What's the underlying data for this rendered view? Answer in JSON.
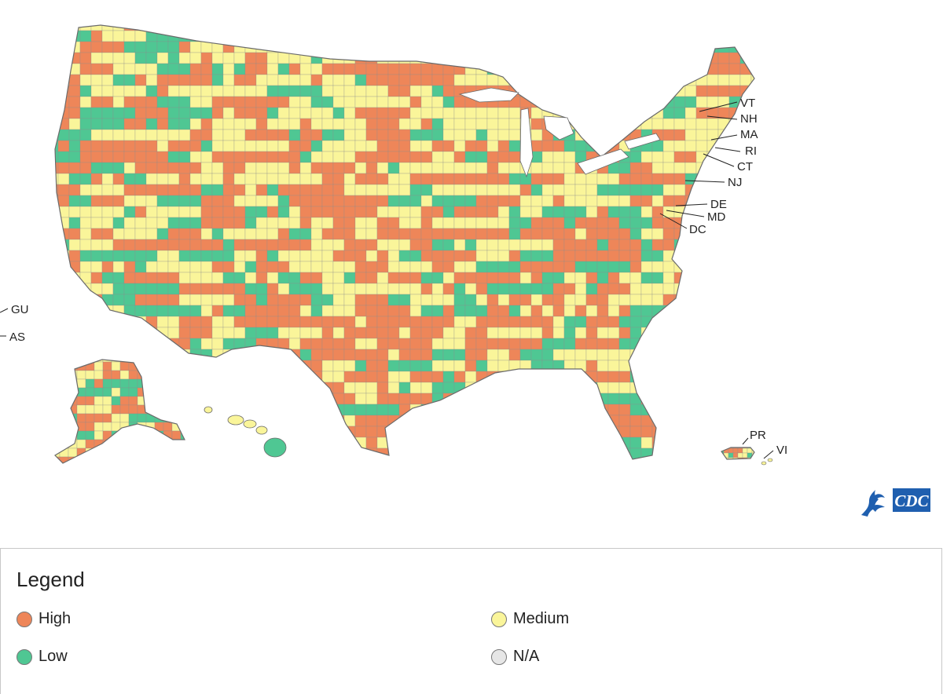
{
  "colors": {
    "high": "#EE8659",
    "medium": "#FAF59A",
    "low": "#4FC793",
    "na": "#E6E6E6",
    "border": "#6b6b6b",
    "cdc_blue": "#1F5FAF"
  },
  "map": {
    "icon": "us-county-map",
    "labels": {
      "vt": "VT",
      "nh": "NH",
      "ma": "MA",
      "ri": "RI",
      "ct": "CT",
      "nj": "NJ",
      "de": "DE",
      "md": "MD",
      "dc": "DC",
      "gu": "GU",
      "as": "AS",
      "pr": "PR",
      "vi": "VI"
    }
  },
  "logo": {
    "text": "CDC",
    "icon": "hhs-eagle-icon"
  },
  "legend": {
    "title": "Legend",
    "items": [
      {
        "label": "High",
        "level": "high"
      },
      {
        "label": "Medium",
        "level": "medium"
      },
      {
        "label": "Low",
        "level": "low"
      },
      {
        "label": "N/A",
        "level": "na"
      }
    ]
  }
}
